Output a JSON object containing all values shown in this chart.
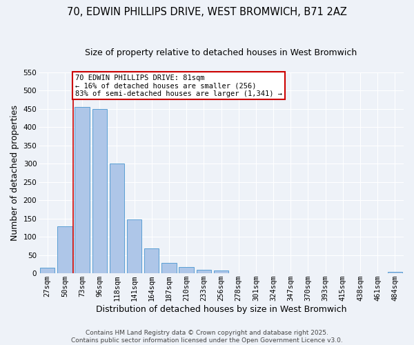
{
  "title": "70, EDWIN PHILLIPS DRIVE, WEST BROMWICH, B71 2AZ",
  "subtitle": "Size of property relative to detached houses in West Bromwich",
  "xlabel": "Distribution of detached houses by size in West Bromwich",
  "ylabel": "Number of detached properties",
  "bin_labels": [
    "27sqm",
    "50sqm",
    "73sqm",
    "96sqm",
    "118sqm",
    "141sqm",
    "164sqm",
    "187sqm",
    "210sqm",
    "233sqm",
    "256sqm",
    "278sqm",
    "301sqm",
    "324sqm",
    "347sqm",
    "370sqm",
    "393sqm",
    "415sqm",
    "438sqm",
    "461sqm",
    "484sqm"
  ],
  "bin_values": [
    15,
    128,
    455,
    450,
    300,
    148,
    68,
    28,
    17,
    10,
    7,
    1,
    0,
    0,
    0,
    0,
    0,
    0,
    0,
    0,
    5
  ],
  "bar_color": "#aec6e8",
  "bar_edge_color": "#5a9fd4",
  "property_line_index": 2,
  "annotation_line1": "70 EDWIN PHILLIPS DRIVE: 81sqm",
  "annotation_line2": "← 16% of detached houses are smaller (256)",
  "annotation_line3": "83% of semi-detached houses are larger (1,341) →",
  "annotation_box_color": "#cc0000",
  "ylim": [
    0,
    550
  ],
  "yticks": [
    0,
    50,
    100,
    150,
    200,
    250,
    300,
    350,
    400,
    450,
    500,
    550
  ],
  "footer1": "Contains HM Land Registry data © Crown copyright and database right 2025.",
  "footer2": "Contains public sector information licensed under the Open Government Licence v3.0.",
  "bg_color": "#eef2f8",
  "grid_color": "#ffffff",
  "title_fontsize": 10.5,
  "subtitle_fontsize": 9,
  "axis_label_fontsize": 9,
  "tick_fontsize": 7.5,
  "annotation_fontsize": 7.5,
  "footer_fontsize": 6.5
}
